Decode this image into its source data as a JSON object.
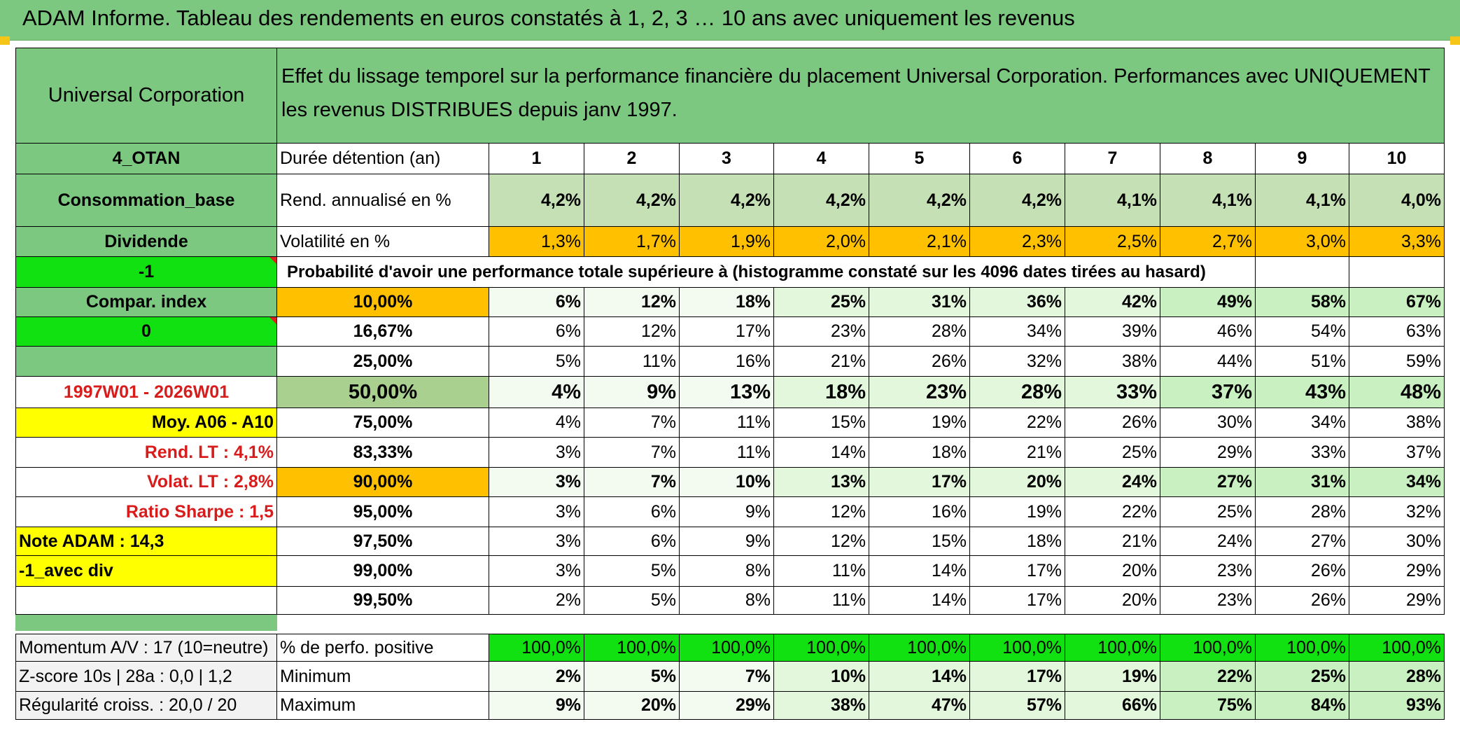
{
  "title": "ADAM Informe. Tableau des rendements en euros constatés à 1, 2, 3 … 10 ans avec uniquement les revenus",
  "colors": {
    "header_green": "#7dc880",
    "bright_green": "#11e011",
    "yellow": "#ffff00",
    "orange": "#ffc000",
    "light_green_1": "#f3fbf1",
    "light_green_2": "#e2f7dc",
    "light_green_3": "#c9f0c0",
    "rend_green": "#c5e0b4",
    "highlight_green": "#a9d08e",
    "red_text": "#d81b1b"
  },
  "left_panel": {
    "company": "Universal Corporation",
    "category": "4_OTAN",
    "sector": "Consommation_base",
    "mode": "Dividende",
    "value_a": "-1",
    "compar_index": "Compar. index",
    "value_b": "0",
    "period": "1997W01 - 2026W01",
    "moy": "Moy. A06 - A10",
    "rend_lt": "Rend. LT :   4,1%",
    "volat_lt": "Volat. LT :   2,8%",
    "sharpe": "Ratio Sharpe :   1,5",
    "note": "Note ADAM : 14,3",
    "avec_div": "-1_avec div",
    "momentum": "Momentum A/V : 17 (10=neutre)",
    "zscore": "Z-score 10s | 28a : 0,0 | 1,2",
    "regularite": "Régularité croiss. : 20,0 / 20"
  },
  "description": "Effet du lissage temporel sur la performance financière du placement Universal Corporation. Performances avec UNIQUEMENT les revenus DISTRIBUES depuis janv 1997.",
  "row_labels": {
    "duree": "Durée détention (an)",
    "rend": "Rend. annualisé en %",
    "vol": "Volatilité en %",
    "proba": "Probabilité d'avoir une performance totale supérieure à (histogramme constaté sur les 4096 dates tirées au hasard)",
    "positive": "% de perfo. positive",
    "minimum": "Minimum",
    "maximum": "Maximum"
  },
  "years": [
    "1",
    "2",
    "3",
    "4",
    "5",
    "6",
    "7",
    "8",
    "9",
    "10"
  ],
  "rend": [
    "4,2%",
    "4,2%",
    "4,2%",
    "4,2%",
    "4,2%",
    "4,2%",
    "4,1%",
    "4,1%",
    "4,1%",
    "4,0%"
  ],
  "vol": [
    "1,3%",
    "1,7%",
    "1,9%",
    "2,0%",
    "2,1%",
    "2,3%",
    "2,5%",
    "2,7%",
    "3,0%",
    "3,3%"
  ],
  "proba_rows": [
    {
      "threshold": "10,00%",
      "values": [
        "6%",
        "12%",
        "18%",
        "25%",
        "31%",
        "36%",
        "42%",
        "49%",
        "58%",
        "67%"
      ]
    },
    {
      "threshold": "16,67%",
      "values": [
        "6%",
        "12%",
        "17%",
        "23%",
        "28%",
        "34%",
        "39%",
        "46%",
        "54%",
        "63%"
      ]
    },
    {
      "threshold": "25,00%",
      "values": [
        "5%",
        "11%",
        "16%",
        "21%",
        "26%",
        "32%",
        "38%",
        "44%",
        "51%",
        "59%"
      ]
    },
    {
      "threshold": "50,00%",
      "values": [
        "4%",
        "9%",
        "13%",
        "18%",
        "23%",
        "28%",
        "33%",
        "37%",
        "43%",
        "48%"
      ]
    },
    {
      "threshold": "75,00%",
      "values": [
        "4%",
        "7%",
        "11%",
        "15%",
        "19%",
        "22%",
        "26%",
        "30%",
        "34%",
        "38%"
      ]
    },
    {
      "threshold": "83,33%",
      "values": [
        "3%",
        "7%",
        "11%",
        "14%",
        "18%",
        "21%",
        "25%",
        "29%",
        "33%",
        "37%"
      ]
    },
    {
      "threshold": "90,00%",
      "values": [
        "3%",
        "7%",
        "10%",
        "13%",
        "17%",
        "20%",
        "24%",
        "27%",
        "31%",
        "34%"
      ]
    },
    {
      "threshold": "95,00%",
      "values": [
        "3%",
        "6%",
        "9%",
        "12%",
        "16%",
        "19%",
        "22%",
        "25%",
        "28%",
        "32%"
      ]
    },
    {
      "threshold": "97,50%",
      "values": [
        "3%",
        "6%",
        "9%",
        "12%",
        "15%",
        "18%",
        "21%",
        "24%",
        "27%",
        "30%"
      ]
    },
    {
      "threshold": "99,00%",
      "values": [
        "3%",
        "5%",
        "8%",
        "11%",
        "14%",
        "17%",
        "20%",
        "23%",
        "26%",
        "29%"
      ]
    },
    {
      "threshold": "99,50%",
      "values": [
        "2%",
        "5%",
        "8%",
        "11%",
        "14%",
        "17%",
        "20%",
        "23%",
        "26%",
        "29%"
      ]
    }
  ],
  "positive": [
    "100,0%",
    "100,0%",
    "100,0%",
    "100,0%",
    "100,0%",
    "100,0%",
    "100,0%",
    "100,0%",
    "100,0%",
    "100,0%"
  ],
  "minimum": [
    "2%",
    "5%",
    "7%",
    "10%",
    "14%",
    "17%",
    "19%",
    "22%",
    "25%",
    "28%"
  ],
  "maximum": [
    "9%",
    "20%",
    "29%",
    "38%",
    "47%",
    "57%",
    "66%",
    "75%",
    "84%",
    "93%"
  ]
}
